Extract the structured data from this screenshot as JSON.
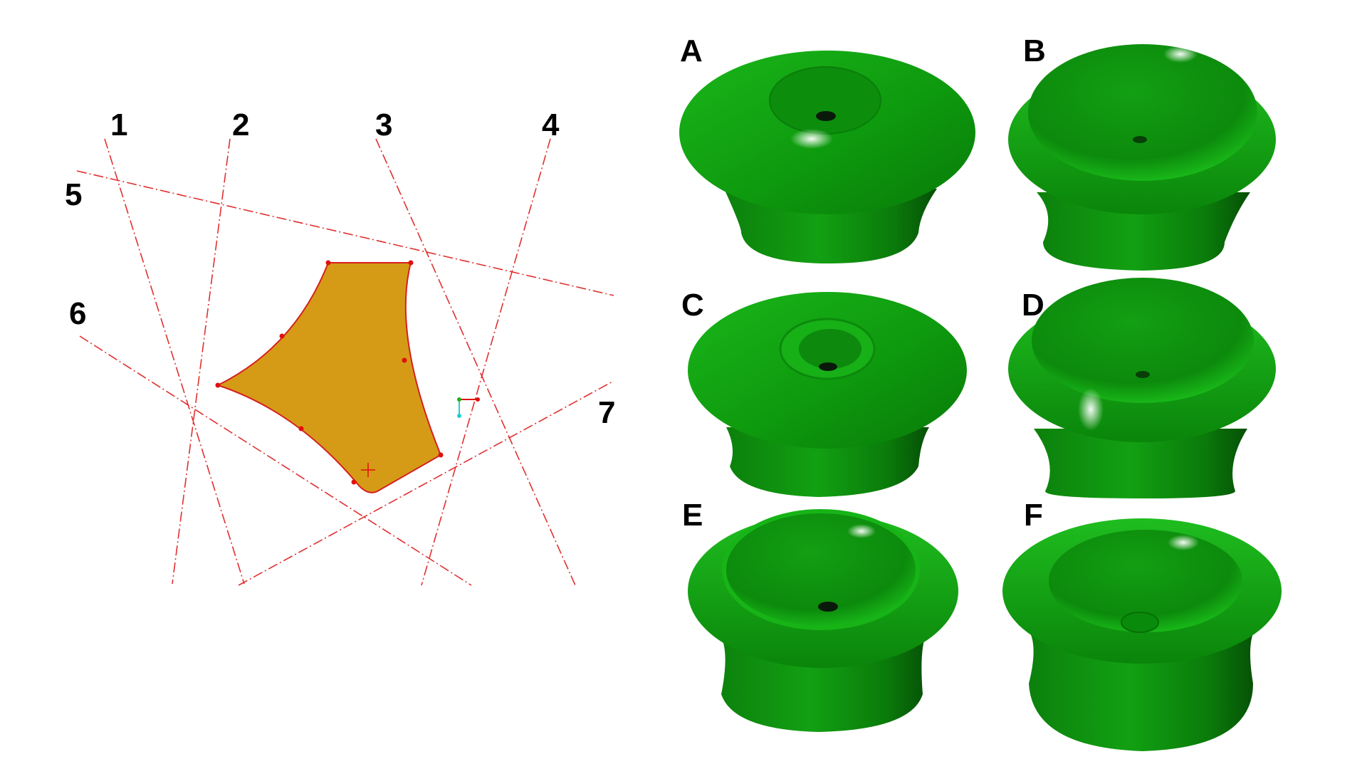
{
  "sketch": {
    "line_labels": [
      "1",
      "2",
      "3",
      "4",
      "5",
      "6",
      "7"
    ],
    "profile_fill": "#d59b16",
    "construction_line_color": "#e03030"
  },
  "options": {
    "labels": [
      "A",
      "B",
      "C",
      "D",
      "E",
      "F"
    ],
    "body_color": "#13b313"
  }
}
